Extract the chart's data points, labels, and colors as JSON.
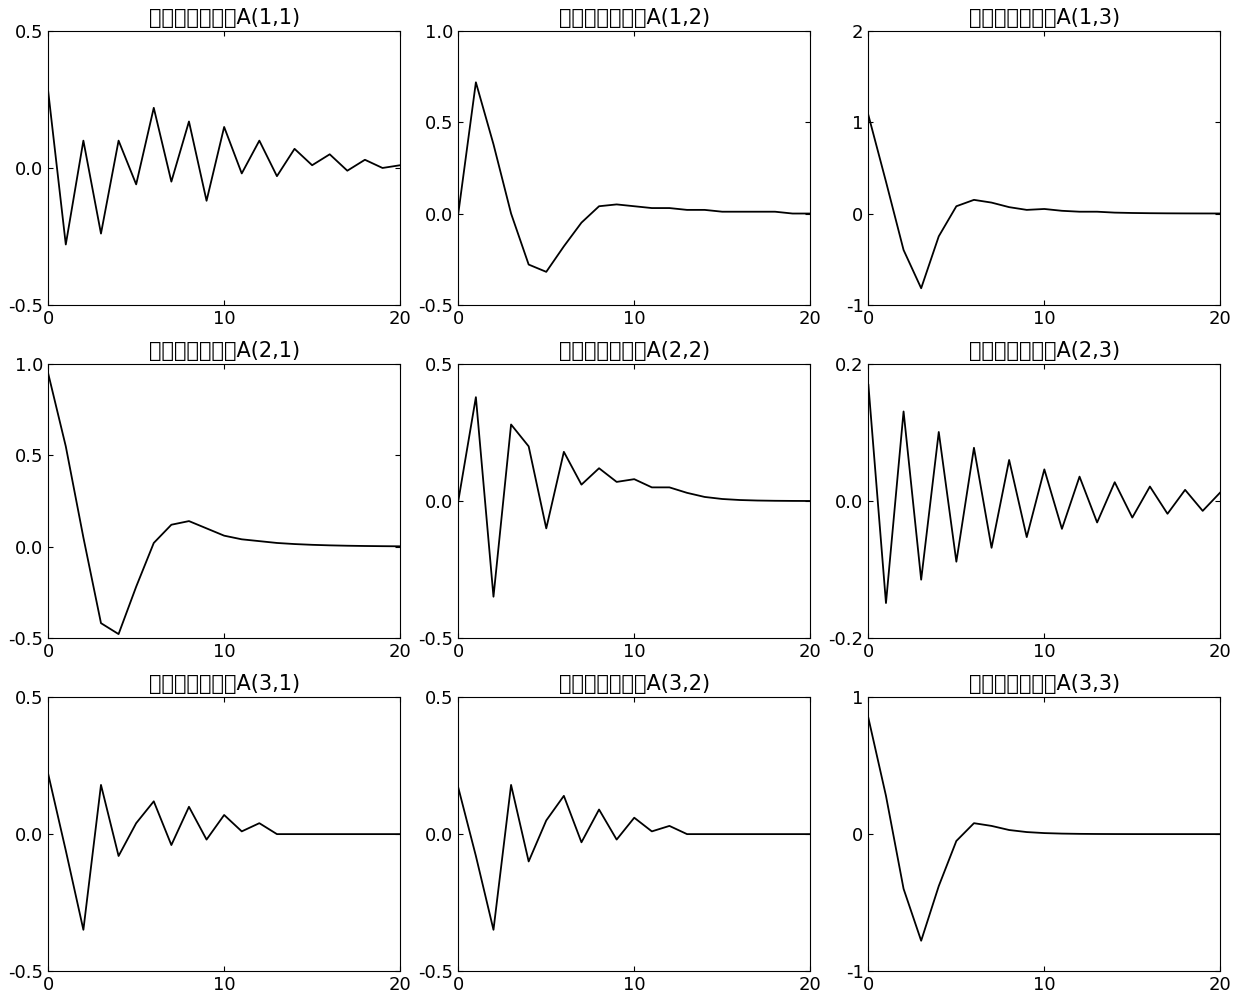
{
  "titles": [
    [
      "混合滤波器系数A(1,1)",
      "混合滤波器系数A(1,2)",
      "混合滤波器系数A(1,3)"
    ],
    [
      "混合滤波器系数A(2,1)",
      "混合滤波器系数A(2,2)",
      "混合滤波器系数A(2,3)"
    ],
    [
      "混合滤波器系数A(3,1)",
      "混合滤波器系数A(3,2)",
      "混合滤波器系数A(3,3)"
    ]
  ],
  "ylims": [
    [
      [
        -0.5,
        0.5
      ],
      [
        -0.5,
        1.0
      ],
      [
        -1.0,
        2.0
      ]
    ],
    [
      [
        -0.5,
        1.0
      ],
      [
        -0.5,
        0.5
      ],
      [
        -0.2,
        0.2
      ]
    ],
    [
      [
        -0.5,
        0.5
      ],
      [
        -0.5,
        0.5
      ],
      [
        -1.0,
        1.0
      ]
    ]
  ],
  "yticks": [
    [
      [
        -0.5,
        0,
        0.5
      ],
      [
        -0.5,
        0,
        0.5,
        1.0
      ],
      [
        -1.0,
        0,
        1.0,
        2.0
      ]
    ],
    [
      [
        -0.5,
        0,
        0.5,
        1.0
      ],
      [
        -0.5,
        0,
        0.5
      ],
      [
        -0.2,
        0,
        0.2
      ]
    ],
    [
      [
        -0.5,
        0,
        0.5
      ],
      [
        -0.5,
        0,
        0.5
      ],
      [
        -1.0,
        0,
        1.0
      ]
    ]
  ],
  "line_color": "#000000",
  "bg_color": "#ffffff",
  "title_fontsize": 15,
  "tick_fontsize": 13
}
